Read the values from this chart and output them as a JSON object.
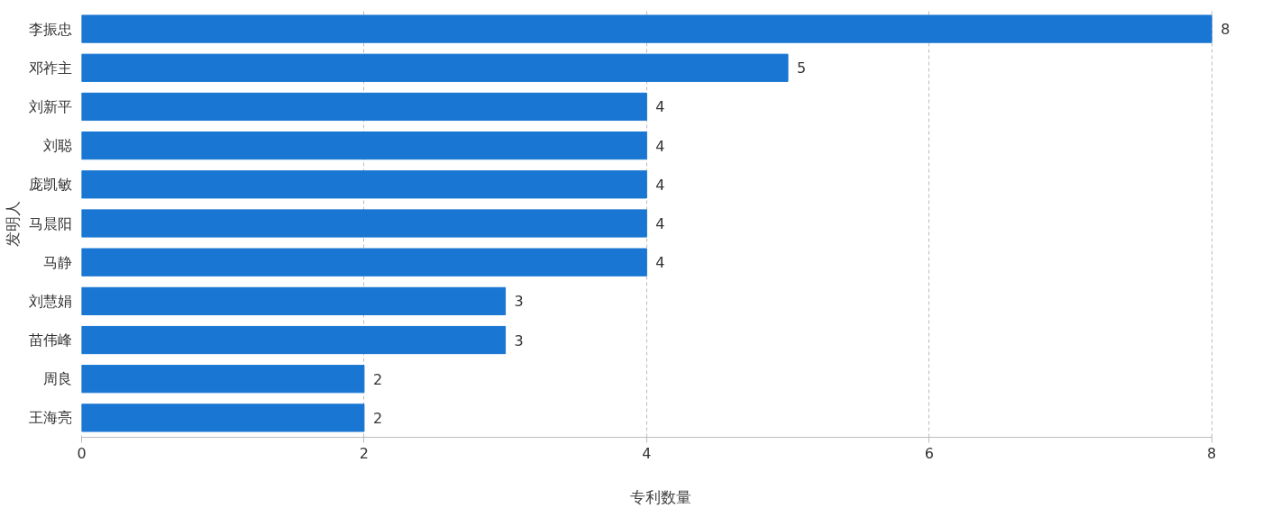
{
  "chart_data": {
    "type": "bar",
    "orientation": "horizontal",
    "xlabel": "专利数量",
    "ylabel": "发明人",
    "categories": [
      "李振忠",
      "邓祚主",
      "刘新平",
      "刘聪",
      "庞凯敏",
      "马晨阳",
      "马静",
      "刘慧娟",
      "苗伟峰",
      "周良",
      "王海亮"
    ],
    "values": [
      8,
      5,
      4,
      4,
      4,
      4,
      4,
      3,
      3,
      2,
      2
    ],
    "color": "#1976d2",
    "xlim": [
      0,
      8
    ],
    "xticks": [
      0,
      2,
      4,
      6,
      8
    ],
    "grid": "x",
    "data_labels": true
  }
}
